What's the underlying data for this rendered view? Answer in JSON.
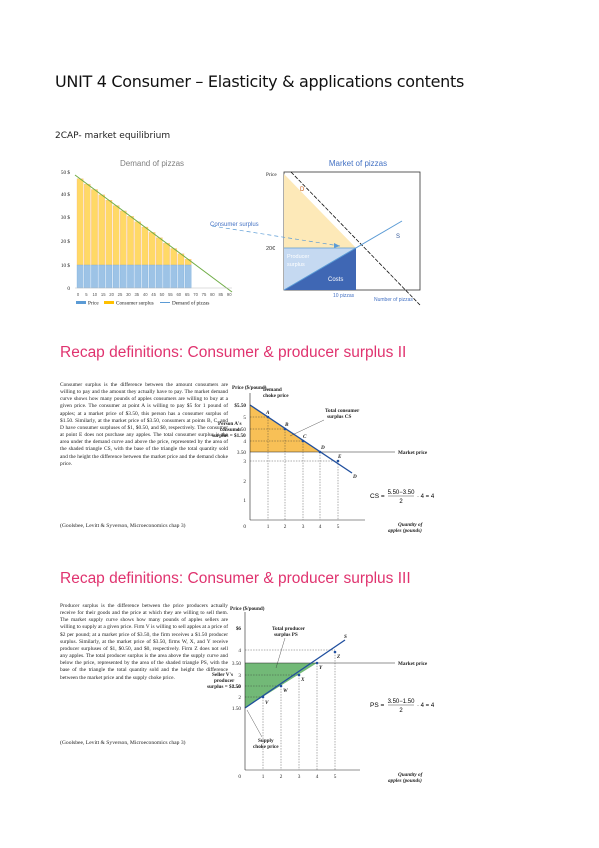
{
  "header": {
    "title": "UNIT 4 Consumer – Elasticity & applications contents",
    "subtitle": "2CAP- market equilibrium"
  },
  "figure_pizza": {
    "demand": {
      "title": "Demand of pizzas",
      "yticks": [
        "50 $",
        "40 $",
        "30 $",
        "20 $",
        "10 $",
        "0"
      ],
      "xticks": [
        "0",
        "5",
        "10",
        "15",
        "20",
        "25",
        "30",
        "35",
        "40",
        "45",
        "50",
        "55",
        "60",
        "65",
        "70",
        "75",
        "80",
        "85",
        "90"
      ],
      "legend": [
        "Price",
        "Consumer surplus",
        "Demand of pizzas"
      ]
    },
    "market": {
      "title": "Market of pizzas",
      "y_label": "Price",
      "demand_label": "D",
      "supply_label": "S",
      "consumer_surplus": "Consumer surplus",
      "price": "20€",
      "producer_surplus": [
        "Producer",
        "surplus"
      ],
      "costs": "Costs",
      "quantity": "10 pizzas",
      "x_label": "Number of pizzas"
    }
  },
  "section_2": {
    "heading": "Recap definitions: Consumer & producer surplus II",
    "paragraph": "Consumer surplus is the difference between the amount consumers are willing to pay and the amount they actually have to pay. The market demand curve shows how many pounds of apples consumers are willing to buy at a given price. The consumer at point A is willing to pay $5 for 1 pound of apples; at a market price of $3.50, this person has a consumer surplus of $1.50. Similarly, at the market price of $3.50, consumers at points B, C, and D have consumer surpluses of $1, $0.50, and $0, respectively. The consumer at point E does not purchase any apples. The total consumer surplus is the area under the demand curve and above the price, represented by the area of the shaded triangle CS, with the base of the triangle the total quantity sold and the height the difference between the market price and the demand choke price.",
    "source": "(Goolsbee, Levitt & Syverson, Microeconomics chap 3)",
    "chart": {
      "y_label": "Price ($/pound)",
      "yticks": [
        "$5.50",
        "5",
        "4.50",
        "4",
        "3.50",
        "3",
        "2",
        "1",
        "0"
      ],
      "xticks": [
        "1",
        "2",
        "3",
        "4",
        "5"
      ],
      "x_label": [
        "Quantity of",
        "apples (pounds)"
      ],
      "choke": [
        "Demand",
        "choke price"
      ],
      "total": [
        "Total consumer",
        "surplus CS"
      ],
      "market_price": "Market price",
      "person": [
        "Person A's",
        "consumer",
        "surplus = $1.50"
      ],
      "points": [
        "A",
        "B",
        "C",
        "D",
        "E"
      ],
      "curve": "D",
      "formula": {
        "lhs": "CS =",
        "num": "5.50−3.50",
        "den": "2",
        "rhs": "· 4 = 4"
      }
    }
  },
  "section_3": {
    "heading": "Recap definitions: Consumer & producer surplus III",
    "paragraph": "Producer surplus is the difference between the price producers actually receive for their goods and the price at which they are willing to sell them. The market supply curve shows how many pounds of apples sellers are willing to supply at a given price. Firm V is willing to sell apples at a price of $2 per pound; at a market price of $3.50, the firm receives a $1.50 producer surplus. Similarly, at the market price of $3.50, firms W, X, and Y receive producer surpluses of $1, $0.50, and $0, respectively. Firm Z does not sell any apples. The total producer surplus is the area above the supply curve and below the price, represented by the area of the shaded triangle PS, with the base of the triangle the total quantity sold and the height the difference between the market price and the supply choke price.",
    "source": "(Goolsbee, Levitt & Syverson, Microeconomics chap 3)",
    "chart": {
      "y_label": "Price ($/pound)",
      "yticks": [
        "$6",
        "4",
        "3.50",
        "3",
        "2.50",
        "2",
        "1.50",
        "0"
      ],
      "xticks": [
        "1",
        "2",
        "3",
        "4",
        "5"
      ],
      "x_label": [
        "Quantity of",
        "apples (pounds)"
      ],
      "total": [
        "Total producer",
        "surplus PS"
      ],
      "market_price": "Market price",
      "seller": [
        "Seller V's",
        "producer",
        "surplus = $1.50"
      ],
      "choke": [
        "Supply",
        "choke price"
      ],
      "points": [
        "V",
        "W",
        "X",
        "Y",
        "Z"
      ],
      "curve": "S",
      "formula": {
        "lhs": "PS =",
        "num": "3.50−1.50",
        "den": "2",
        "rhs": "· 4 = 4"
      }
    }
  }
}
